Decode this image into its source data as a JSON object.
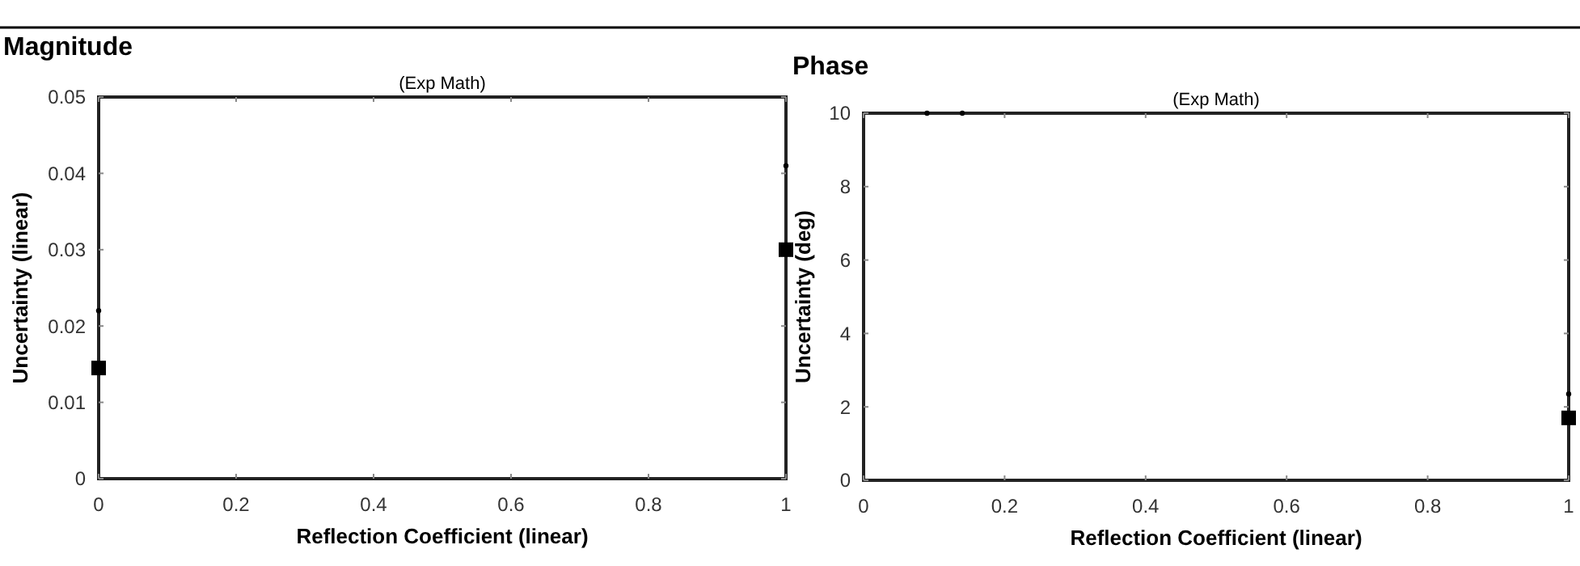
{
  "chart_data": [
    {
      "type": "scatter",
      "title": "Magnitude",
      "subtitle": "(Exp Math)",
      "xlabel": "Reflection Coefficient (linear)",
      "ylabel": "Uncertainty (linear)",
      "xlim": [
        0,
        1
      ],
      "xticks": [
        0,
        0.2,
        0.4,
        0.6,
        0.8,
        1
      ],
      "ylim": [
        0,
        0.05
      ],
      "yticks": [
        0,
        0.01,
        0.02,
        0.03,
        0.04,
        0.05
      ],
      "grid": false,
      "series": [
        {
          "color": "#000000",
          "marker": "square",
          "x": [
            0,
            1
          ],
          "values": [
            0.0145,
            0.03
          ]
        },
        {
          "color": "#000000",
          "marker": "circle",
          "x": [
            0,
            1
          ],
          "values": [
            0.022,
            0.041
          ]
        }
      ]
    },
    {
      "type": "scatter",
      "title": "Phase",
      "subtitle": "(Exp Math)",
      "xlabel": "Reflection Coefficient (linear)",
      "ylabel": "Uncertainty (deg)",
      "xlim": [
        0,
        1
      ],
      "xticks": [
        0,
        0.2,
        0.4,
        0.6,
        0.8,
        1
      ],
      "ylim": [
        0,
        10
      ],
      "yticks": [
        0,
        2,
        4,
        6,
        8,
        10
      ],
      "grid": false,
      "series": [
        {
          "color": "#000000",
          "marker": "square",
          "x": [
            1
          ],
          "values": [
            1.7
          ]
        },
        {
          "color": "#000000",
          "marker": "circle",
          "x": [
            0.09,
            0.14,
            1
          ],
          "values": [
            10,
            10,
            2.35
          ]
        }
      ]
    }
  ]
}
